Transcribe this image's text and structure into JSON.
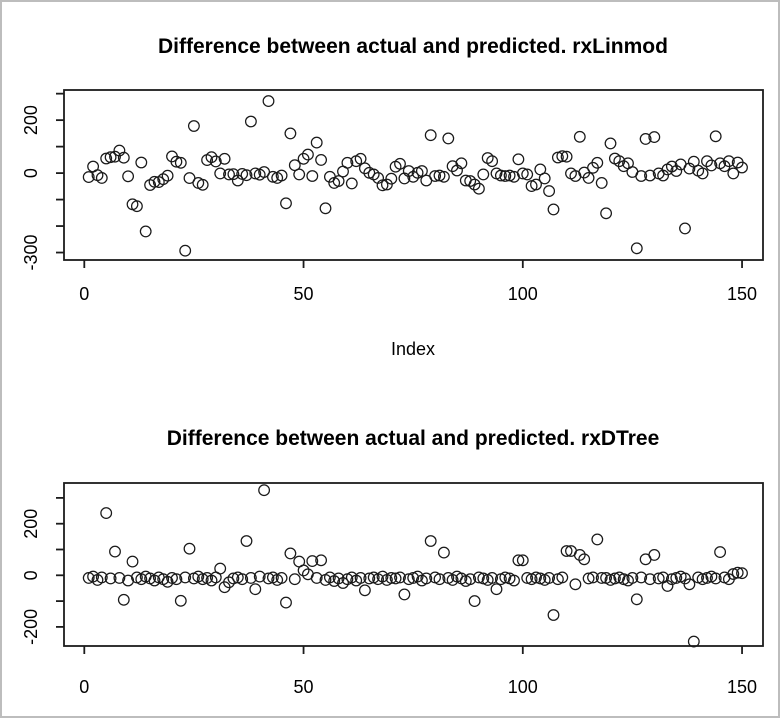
{
  "window": {
    "background": "#ffffff",
    "frame_border_color": "#bdbdbd"
  },
  "chart_data": [
    {
      "type": "scatter",
      "title": "Difference between actual and predicted. rxLinmod",
      "xlabel": "Index",
      "ylabel": "",
      "marker": "open-circle",
      "marker_color": "#1a1a1a",
      "grid": false,
      "xlim": [
        0,
        156
      ],
      "ylim": [
        -328,
        313
      ],
      "xtick_values": [
        0,
        50,
        100,
        150
      ],
      "xtick_labels": [
        "0",
        "50",
        "100",
        "150"
      ],
      "ytick_values": [
        300,
        200,
        100,
        0,
        -100,
        -200,
        -300
      ],
      "ytick_labels": [
        "",
        "200",
        "",
        "0",
        "",
        "",
        "-300"
      ],
      "x_is_index_from_1": true,
      "values": [
        -15,
        25,
        -8,
        -18,
        55,
        60,
        62,
        85,
        58,
        -12,
        -118,
        -125,
        40,
        -220,
        -45,
        -33,
        -34,
        -23,
        -10,
        63,
        43,
        39,
        -293,
        -19,
        178,
        -37,
        -44,
        49,
        60,
        44,
        -1,
        54,
        -5,
        -4,
        -28,
        -3,
        -8,
        195,
        -1,
        -6,
        4,
        272,
        -14,
        -18,
        -9,
        -114,
        150,
        30,
        -5,
        54,
        70,
        -11,
        115,
        50,
        -133,
        -14,
        -37,
        -30,
        6,
        39,
        -39,
        45,
        54,
        18,
        1,
        -5,
        -18,
        -46,
        -43,
        -21,
        24,
        35,
        -20,
        8,
        -14,
        1,
        8,
        -28,
        143,
        -11,
        -9,
        -14,
        131,
        26,
        10,
        37,
        -28,
        -30,
        -43,
        -59,
        -5,
        57,
        45,
        -1,
        -9,
        -11,
        -9,
        -14,
        52,
        -1,
        -5,
        -49,
        -43,
        14,
        -20,
        -68,
        -137,
        59,
        64,
        62,
        -1,
        -11,
        137,
        2,
        -18,
        20,
        39,
        -37,
        -152,
        112,
        55,
        45,
        26,
        37,
        4,
        -284,
        -11,
        129,
        -9,
        136,
        -1,
        -9,
        14,
        25,
        8,
        33,
        -209,
        17,
        43,
        9,
        -1,
        45,
        29,
        139,
        37,
        26,
        45,
        -1,
        40,
        21
      ]
    },
    {
      "type": "scatter",
      "title": "Difference between actual and predicted. rxDTree",
      "xlabel": "",
      "ylabel": "",
      "marker": "open-circle",
      "marker_color": "#1a1a1a",
      "grid": false,
      "xlim": [
        0,
        156
      ],
      "ylim": [
        -277,
        355
      ],
      "xtick_values": [
        0,
        50,
        100,
        150
      ],
      "xtick_labels": [
        "0",
        "50",
        "100",
        "150"
      ],
      "ytick_values": [
        300,
        200,
        100,
        0,
        -100,
        -200
      ],
      "ytick_labels": [
        "",
        "200",
        "",
        "0",
        "",
        "-200"
      ],
      "x_is_index_from_1": true,
      "values": [
        -10,
        -5,
        -18,
        -8,
        241,
        -12,
        92,
        -10,
        -95,
        -20,
        53,
        -8,
        -15,
        -5,
        -12,
        -20,
        -8,
        -15,
        -25,
        -10,
        -15,
        -99,
        -8,
        103,
        -12,
        -5,
        -15,
        -10,
        -20,
        -8,
        26,
        -46,
        -27,
        -12,
        -8,
        -15,
        133,
        -10,
        -54,
        -5,
        330,
        -12,
        -8,
        -18,
        -10,
        -106,
        85,
        -15,
        53,
        19,
        4,
        55,
        -10,
        58,
        -18,
        -8,
        -22,
        -12,
        -30,
        -15,
        -8,
        -20,
        -10,
        -58,
        -12,
        -8,
        -15,
        -5,
        -18,
        -10,
        -12,
        -8,
        -74,
        -15,
        -10,
        -5,
        -20,
        -12,
        133,
        -8,
        -15,
        88,
        -10,
        -18,
        -5,
        -12,
        -22,
        -15,
        -100,
        -8,
        -12,
        -18,
        -10,
        -54,
        -15,
        -8,
        -12,
        -20,
        58,
        58,
        -10,
        -15,
        -8,
        -12,
        -18,
        -10,
        -154,
        -15,
        -8,
        94,
        94,
        -35,
        79,
        62,
        -12,
        -8,
        139,
        -10,
        -10,
        -18,
        -12,
        -8,
        -15,
        -20,
        -10,
        -93,
        -8,
        62,
        -15,
        79,
        -12,
        -8,
        -41,
        -15,
        -10,
        -5,
        -12,
        -35,
        -257,
        -8,
        -15,
        -10,
        -5,
        -12,
        90,
        -8,
        -15,
        5,
        10,
        8
      ]
    }
  ]
}
